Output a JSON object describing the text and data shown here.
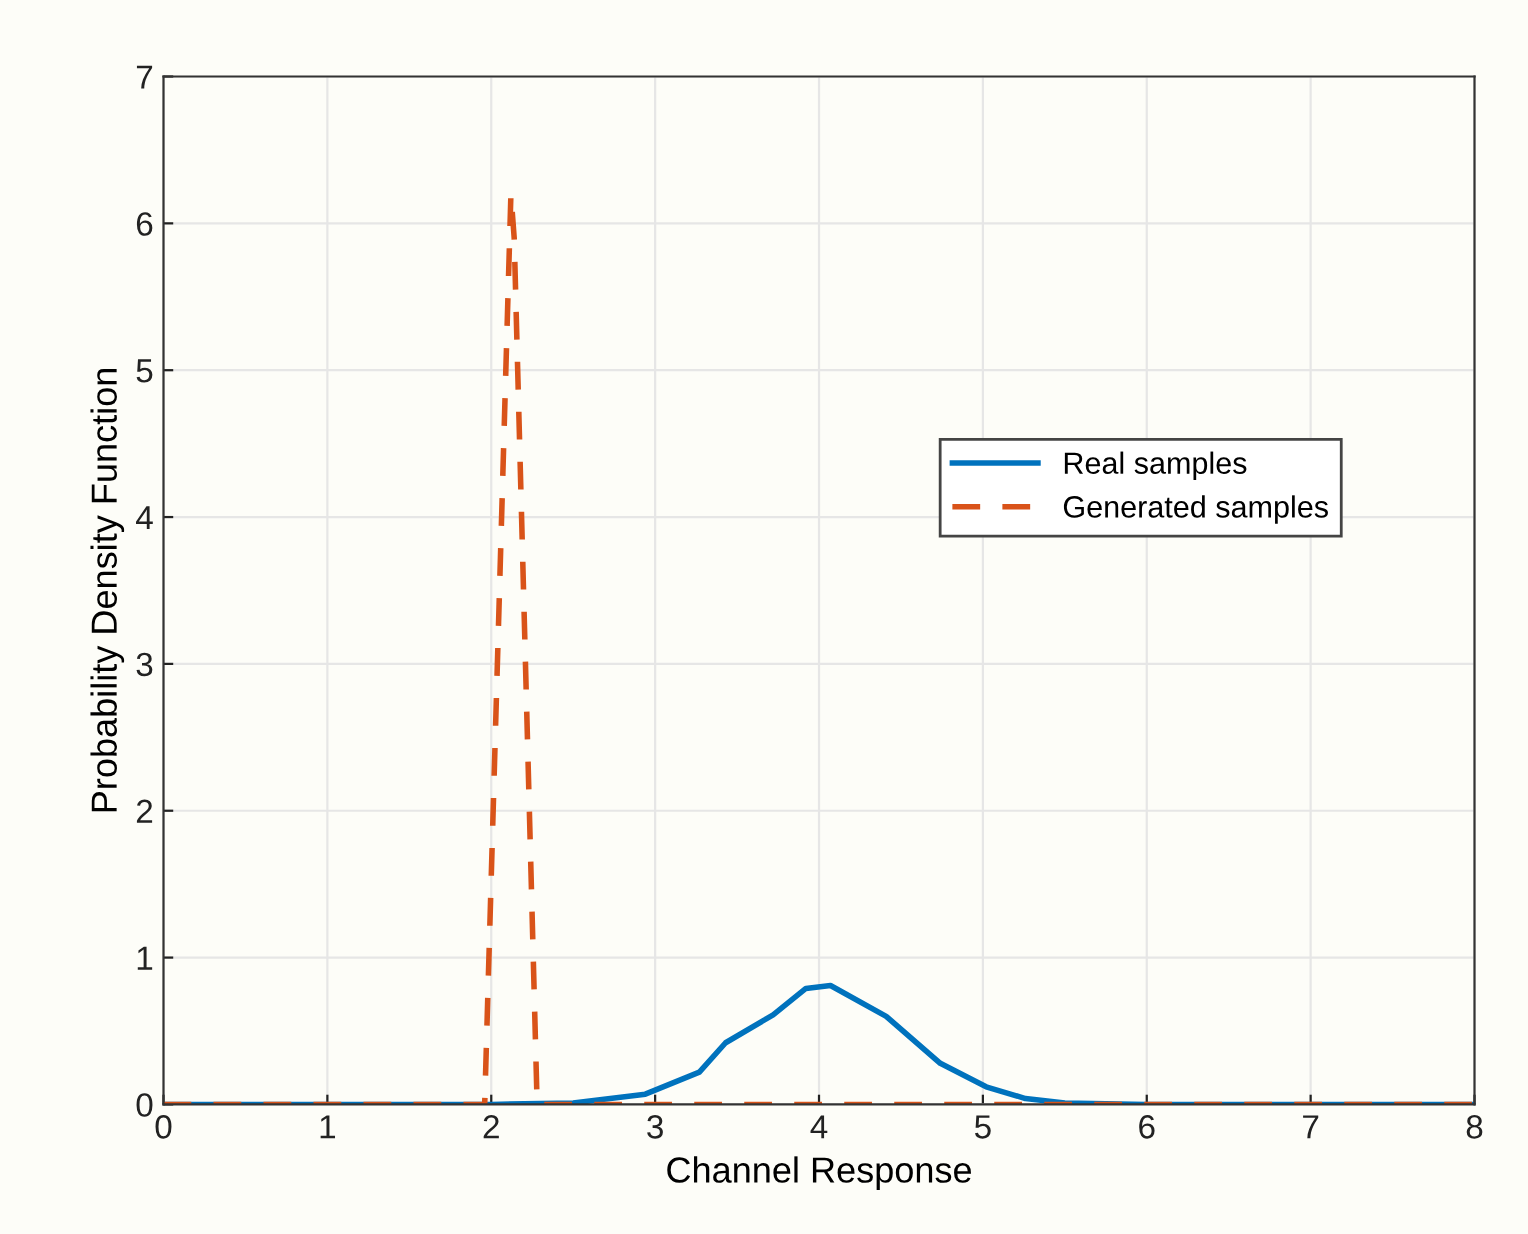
{
  "chart_data": {
    "type": "line",
    "xlabel": "Channel Response",
    "ylabel": "Probability Density Function",
    "xlim": [
      0,
      8
    ],
    "ylim": [
      0,
      7
    ],
    "xticks": [
      0,
      1,
      2,
      3,
      4,
      5,
      6,
      7,
      8
    ],
    "yticks": [
      0,
      1,
      2,
      3,
      4,
      5,
      6,
      7
    ],
    "grid": true,
    "legend": "right",
    "series": [
      {
        "name": "Real samples",
        "color": "#0072bd",
        "line_style": "solid",
        "x": [
          0,
          1,
          2,
          2.5,
          2.94,
          3.27,
          3.43,
          3.72,
          3.92,
          4.07,
          4.41,
          4.74,
          5.02,
          5.26,
          5.5,
          6,
          7,
          8
        ],
        "values": [
          0,
          0,
          0,
          0.01,
          0.07,
          0.22,
          0.42,
          0.61,
          0.79,
          0.81,
          0.6,
          0.28,
          0.12,
          0.04,
          0.01,
          0,
          0,
          0
        ]
      },
      {
        "name": "Generated samples",
        "color": "#d95319",
        "line_style": "dashed",
        "x": [
          0,
          1,
          1.96,
          2.12,
          2.14,
          2.28,
          3,
          4,
          5,
          6,
          7,
          8
        ],
        "values": [
          0,
          0,
          0,
          6.2,
          5.9,
          0,
          0,
          0,
          0,
          0,
          0,
          0
        ]
      }
    ]
  }
}
